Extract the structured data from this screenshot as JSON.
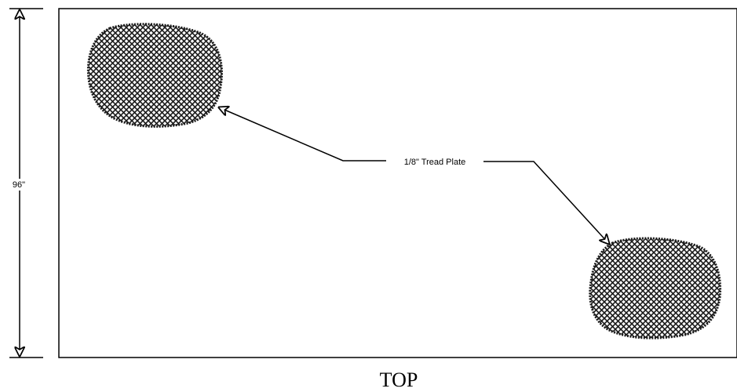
{
  "drawing": {
    "dimension_label": "96\"",
    "callout_label": "1/8\" Tread Plate",
    "view_label": "TOP",
    "patch_count": 2,
    "colors": {
      "line": "#000000",
      "background": "#ffffff",
      "tread_hatch": "#1a1a1a"
    }
  }
}
